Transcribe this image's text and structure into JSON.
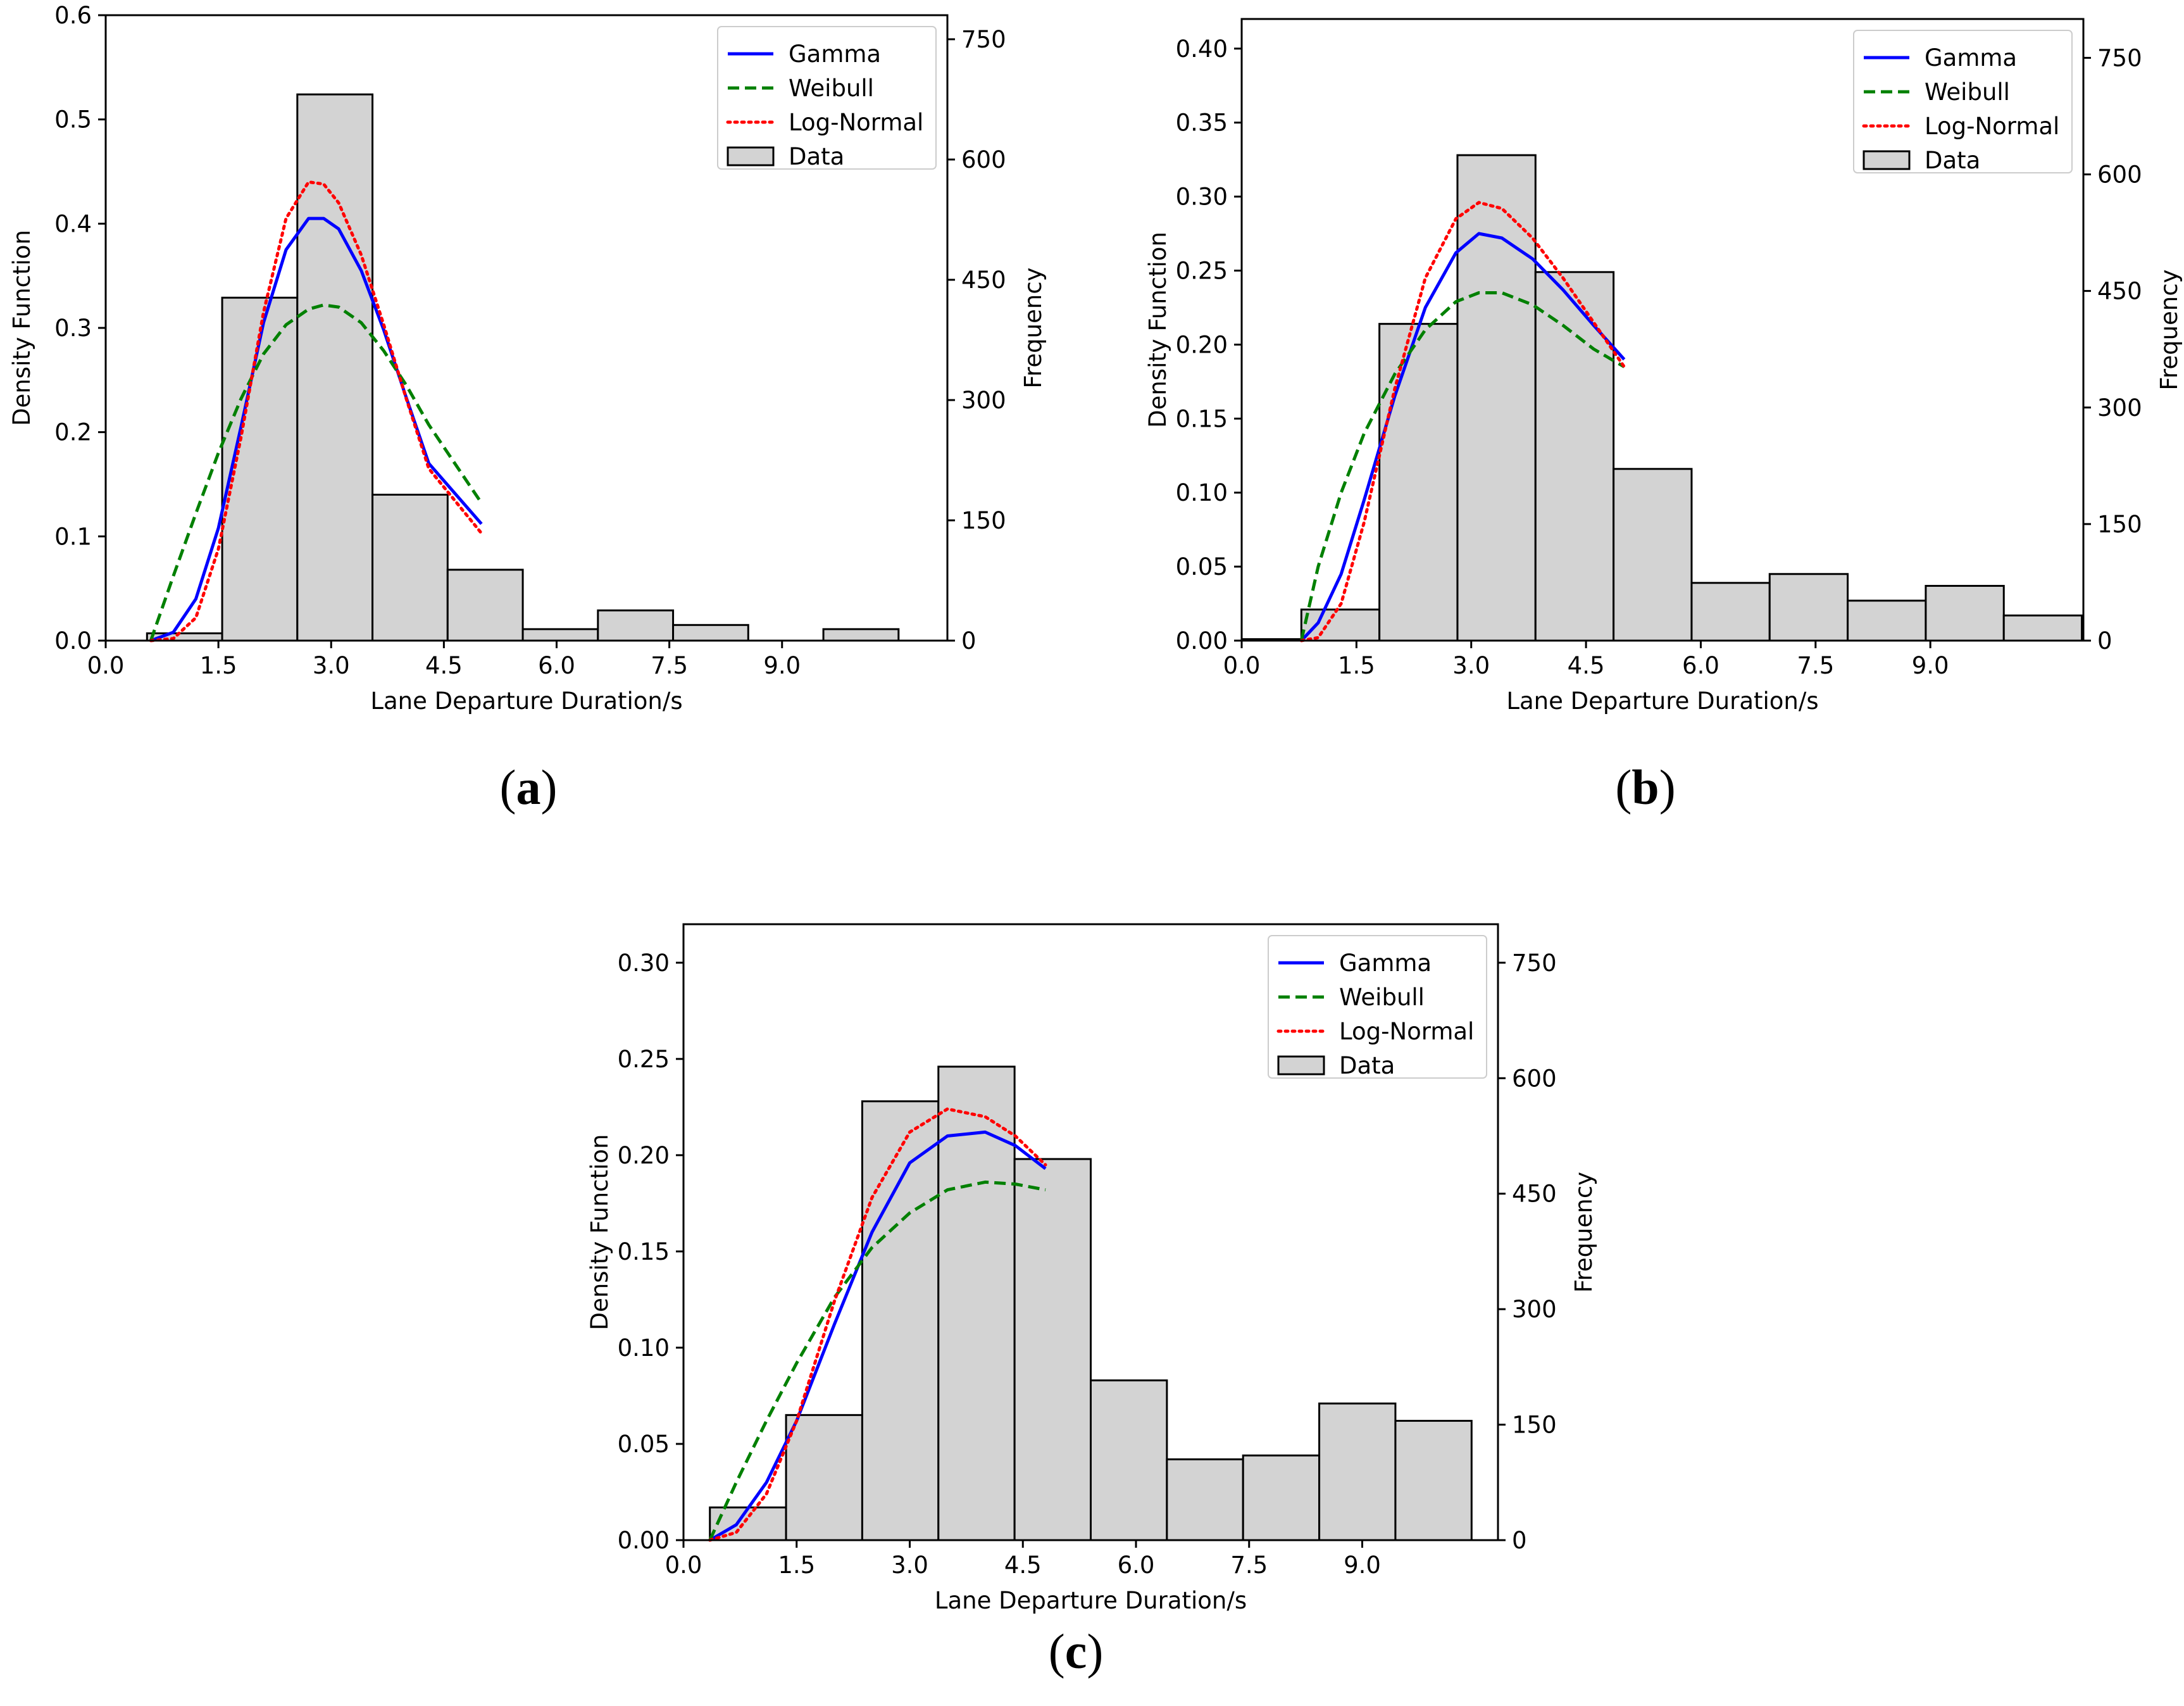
{
  "colors": {
    "gamma": "#0000ff",
    "weibull": "#008000",
    "lognormal": "#ff0000",
    "bar_fill": "#d3d3d3",
    "bar_edge": "#000000"
  },
  "chart_data": [
    {
      "id": "a",
      "type": "bar",
      "panel_label": "a",
      "xlabel": "Lane Departure Duration/s",
      "ylabel": "Density Function",
      "y2label": "Frequency",
      "xlim": [
        0,
        11.2
      ],
      "ylim": [
        0,
        0.6
      ],
      "y2lim": [
        0,
        780
      ],
      "xticks": [
        "0.0",
        "1.5",
        "3.0",
        "4.5",
        "6.0",
        "7.5",
        "9.0"
      ],
      "yticks": [
        "0.0",
        "0.1",
        "0.2",
        "0.3",
        "0.4",
        "0.5",
        "0.6"
      ],
      "y2ticks": [
        "0",
        "150",
        "300",
        "450",
        "600",
        "750"
      ],
      "bins": [
        {
          "x0": 0.55,
          "x1": 1.55,
          "density": 0.007
        },
        {
          "x0": 1.55,
          "x1": 2.55,
          "density": 0.329
        },
        {
          "x0": 2.55,
          "x1": 3.55,
          "density": 0.524
        },
        {
          "x0": 3.55,
          "x1": 4.55,
          "density": 0.14
        },
        {
          "x0": 4.55,
          "x1": 5.55,
          "density": 0.068
        },
        {
          "x0": 5.55,
          "x1": 6.55,
          "density": 0.011
        },
        {
          "x0": 6.55,
          "x1": 7.55,
          "density": 0.029
        },
        {
          "x0": 7.55,
          "x1": 8.55,
          "density": 0.015
        },
        {
          "x0": 8.55,
          "x1": 9.55,
          "density": 0.0
        },
        {
          "x0": 9.55,
          "x1": 10.55,
          "density": 0.011
        }
      ],
      "series": [
        {
          "name": "Gamma",
          "style": "solid",
          "x": [
            0.6,
            0.9,
            1.2,
            1.5,
            1.8,
            2.1,
            2.4,
            2.7,
            2.9,
            3.1,
            3.4,
            3.7,
            4.0,
            4.3,
            5.0
          ],
          "y": [
            0.0,
            0.008,
            0.04,
            0.108,
            0.205,
            0.305,
            0.375,
            0.405,
            0.405,
            0.395,
            0.355,
            0.298,
            0.233,
            0.17,
            0.112
          ]
        },
        {
          "name": "Weibull",
          "style": "dashed",
          "x": [
            0.6,
            0.9,
            1.2,
            1.5,
            1.8,
            2.1,
            2.4,
            2.7,
            2.9,
            3.1,
            3.4,
            3.7,
            4.0,
            4.3,
            5.0
          ],
          "y": [
            0.0,
            0.062,
            0.122,
            0.18,
            0.232,
            0.275,
            0.303,
            0.318,
            0.322,
            0.32,
            0.305,
            0.278,
            0.245,
            0.207,
            0.132
          ]
        },
        {
          "name": "Log-Normal",
          "style": "dotted",
          "x": [
            0.6,
            0.9,
            1.2,
            1.5,
            1.8,
            2.1,
            2.4,
            2.7,
            2.9,
            3.1,
            3.4,
            3.7,
            4.0,
            4.3,
            5.0
          ],
          "y": [
            0.0,
            0.002,
            0.022,
            0.088,
            0.195,
            0.315,
            0.405,
            0.44,
            0.438,
            0.42,
            0.37,
            0.303,
            0.232,
            0.165,
            0.103
          ]
        }
      ],
      "legend": [
        "Gamma",
        "Weibull",
        "Log-Normal",
        "Data"
      ],
      "legend_loc": "top-right"
    },
    {
      "id": "b",
      "type": "bar",
      "panel_label": "b",
      "xlabel": "Lane Departure Duration/s",
      "ylabel": "Density Function",
      "y2label": "Frequency",
      "xlim": [
        0,
        11.0
      ],
      "ylim": [
        0,
        0.42
      ],
      "y2lim": [
        0,
        800
      ],
      "xticks": [
        "0.0",
        "1.5",
        "3.0",
        "4.5",
        "6.0",
        "7.5",
        "9.0"
      ],
      "yticks": [
        "0.00",
        "0.05",
        "0.10",
        "0.15",
        "0.20",
        "0.25",
        "0.30",
        "0.35",
        "0.40"
      ],
      "y2ticks": [
        "0",
        "150",
        "300",
        "450",
        "600",
        "750"
      ],
      "bins": [
        {
          "x0": 0.0,
          "x1": 0.78,
          "density": 0.001
        },
        {
          "x0": 0.78,
          "x1": 1.8,
          "density": 0.021
        },
        {
          "x0": 1.8,
          "x1": 2.82,
          "density": 0.214
        },
        {
          "x0": 2.82,
          "x1": 3.84,
          "density": 0.328
        },
        {
          "x0": 3.84,
          "x1": 4.86,
          "density": 0.249
        },
        {
          "x0": 4.86,
          "x1": 5.88,
          "density": 0.116
        },
        {
          "x0": 5.88,
          "x1": 6.9,
          "density": 0.039
        },
        {
          "x0": 6.9,
          "x1": 7.92,
          "density": 0.045
        },
        {
          "x0": 7.92,
          "x1": 8.94,
          "density": 0.027
        },
        {
          "x0": 8.94,
          "x1": 9.96,
          "density": 0.037
        },
        {
          "x0": 9.96,
          "x1": 10.98,
          "density": 0.017
        }
      ],
      "series": [
        {
          "name": "Gamma",
          "style": "solid",
          "x": [
            0.78,
            1.0,
            1.3,
            1.6,
            2.0,
            2.4,
            2.8,
            3.1,
            3.4,
            3.8,
            4.2,
            4.6,
            5.0
          ],
          "y": [
            0.0,
            0.012,
            0.045,
            0.095,
            0.165,
            0.225,
            0.262,
            0.275,
            0.272,
            0.258,
            0.237,
            0.213,
            0.19
          ]
        },
        {
          "name": "Weibull",
          "style": "dashed",
          "x": [
            0.78,
            1.0,
            1.3,
            1.6,
            2.0,
            2.4,
            2.8,
            3.1,
            3.4,
            3.8,
            4.2,
            4.6,
            5.0
          ],
          "y": [
            0.0,
            0.05,
            0.1,
            0.14,
            0.18,
            0.21,
            0.229,
            0.235,
            0.235,
            0.227,
            0.213,
            0.197,
            0.185
          ]
        },
        {
          "name": "Log-Normal",
          "style": "dotted",
          "x": [
            0.78,
            1.0,
            1.3,
            1.6,
            2.0,
            2.4,
            2.8,
            3.1,
            3.4,
            3.8,
            4.2,
            4.6,
            5.0
          ],
          "y": [
            0.0,
            0.002,
            0.025,
            0.08,
            0.17,
            0.245,
            0.285,
            0.296,
            0.292,
            0.272,
            0.245,
            0.215,
            0.185
          ]
        }
      ],
      "legend": [
        "Gamma",
        "Weibull",
        "Log-Normal",
        "Data"
      ],
      "legend_loc": "top-right"
    },
    {
      "id": "c",
      "type": "bar",
      "panel_label": "c",
      "xlabel": "Lane Departure Duration/s",
      "ylabel": "Density Function",
      "y2label": "Frequency",
      "xlim": [
        0,
        10.8
      ],
      "ylim": [
        0,
        0.32
      ],
      "y2lim": [
        0,
        800
      ],
      "xticks": [
        "0.0",
        "1.5",
        "3.0",
        "4.5",
        "6.0",
        "7.5",
        "9.0"
      ],
      "yticks": [
        "0.00",
        "0.05",
        "0.10",
        "0.15",
        "0.20",
        "0.25",
        "0.30"
      ],
      "y2ticks": [
        "0",
        "150",
        "300",
        "450",
        "600",
        "750"
      ],
      "bins": [
        {
          "x0": 0.35,
          "x1": 1.36,
          "density": 0.017
        },
        {
          "x0": 1.36,
          "x1": 2.37,
          "density": 0.065
        },
        {
          "x0": 2.37,
          "x1": 3.38,
          "density": 0.228
        },
        {
          "x0": 3.38,
          "x1": 4.39,
          "density": 0.246
        },
        {
          "x0": 4.39,
          "x1": 5.4,
          "density": 0.198
        },
        {
          "x0": 5.4,
          "x1": 6.41,
          "density": 0.083
        },
        {
          "x0": 6.41,
          "x1": 7.42,
          "density": 0.042
        },
        {
          "x0": 7.42,
          "x1": 8.43,
          "density": 0.044
        },
        {
          "x0": 8.43,
          "x1": 9.44,
          "density": 0.071
        },
        {
          "x0": 9.44,
          "x1": 10.45,
          "density": 0.062
        }
      ],
      "series": [
        {
          "name": "Gamma",
          "style": "solid",
          "x": [
            0.35,
            0.7,
            1.1,
            1.5,
            2.0,
            2.5,
            3.0,
            3.5,
            4.0,
            4.4,
            4.8
          ],
          "y": [
            0.0,
            0.008,
            0.03,
            0.062,
            0.112,
            0.16,
            0.196,
            0.21,
            0.212,
            0.205,
            0.193
          ]
        },
        {
          "name": "Weibull",
          "style": "dashed",
          "x": [
            0.35,
            0.7,
            1.1,
            1.5,
            2.0,
            2.5,
            3.0,
            3.5,
            4.0,
            4.4,
            4.8
          ],
          "y": [
            0.0,
            0.03,
            0.062,
            0.092,
            0.126,
            0.152,
            0.17,
            0.182,
            0.186,
            0.185,
            0.182
          ]
        },
        {
          "name": "Log-Normal",
          "style": "dotted",
          "x": [
            0.35,
            0.7,
            1.1,
            1.5,
            2.0,
            2.5,
            3.0,
            3.5,
            4.0,
            4.4,
            4.8
          ],
          "y": [
            0.0,
            0.004,
            0.024,
            0.062,
            0.124,
            0.178,
            0.212,
            0.224,
            0.22,
            0.21,
            0.195
          ]
        }
      ],
      "legend": [
        "Gamma",
        "Weibull",
        "Log-Normal",
        "Data"
      ],
      "legend_loc": "top-right"
    }
  ]
}
